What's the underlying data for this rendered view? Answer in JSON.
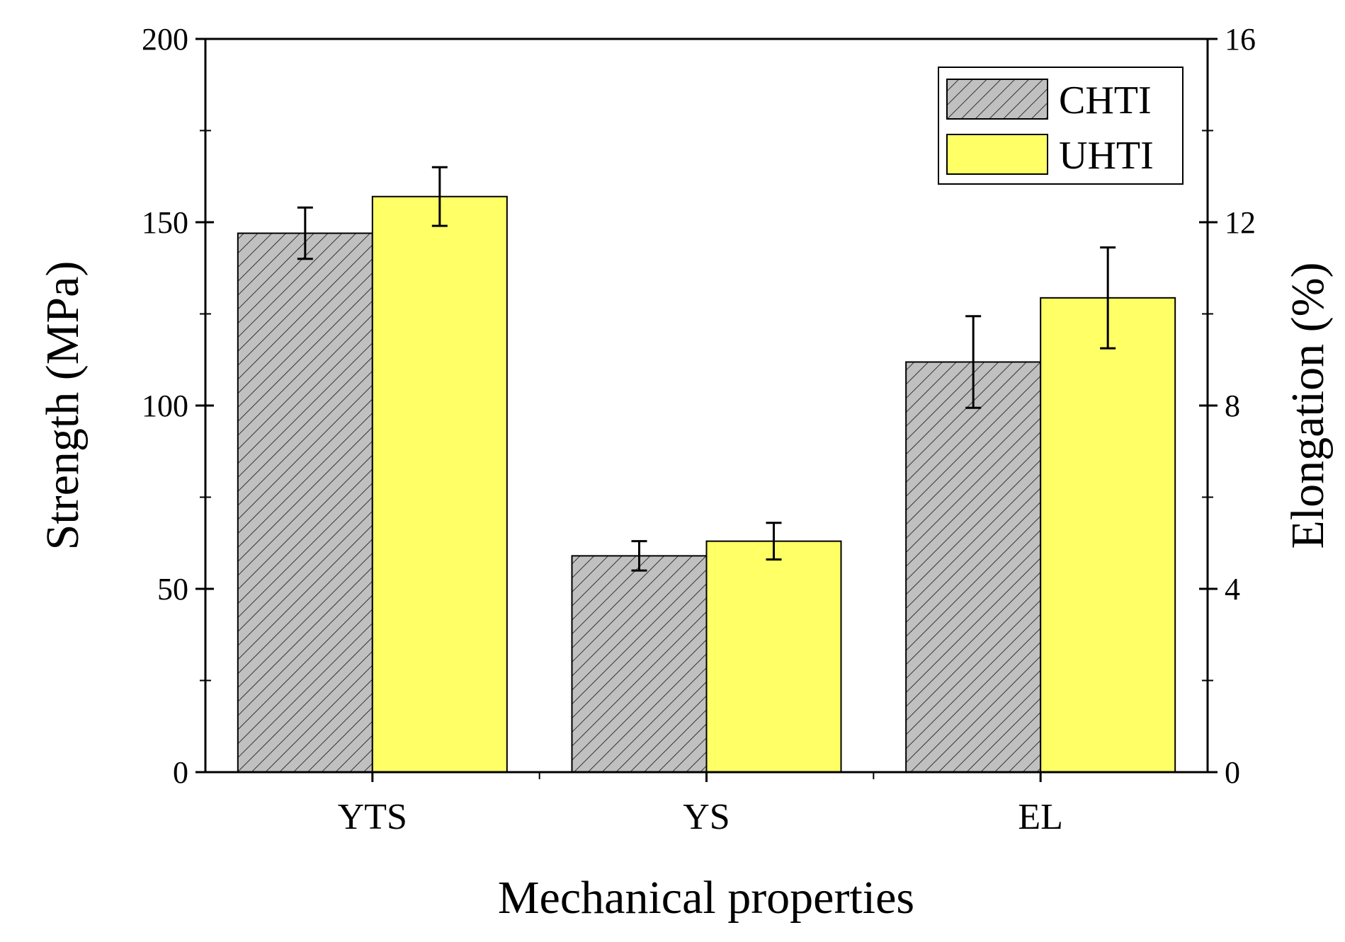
{
  "chart_data": {
    "type": "bar",
    "categories": [
      "YTS",
      "YS",
      "EL"
    ],
    "xlabel": "Mechanical properties",
    "ylabel": "Strength (MPa)",
    "y2label": "Elongation (%)",
    "ylim": [
      0,
      200
    ],
    "y2lim": [
      0,
      16
    ],
    "yticks": [
      "0",
      "50",
      "100",
      "150",
      "200"
    ],
    "y2ticks": [
      "0",
      "4",
      "8",
      "12",
      "16"
    ],
    "legend_position": "top-right",
    "grid": false,
    "series": [
      {
        "name": "CHTI",
        "color": "#c0c0c0",
        "pattern": "diagonal-hatch",
        "values": [
          147,
          59,
          8.95
        ],
        "errors": [
          7,
          4,
          1.0
        ],
        "axes": [
          "left",
          "left",
          "right"
        ]
      },
      {
        "name": "UHTI",
        "color": "#ffff66",
        "pattern": "solid",
        "values": [
          157,
          63,
          10.35
        ],
        "errors": [
          8,
          5,
          1.1
        ],
        "axes": [
          "left",
          "left",
          "right"
        ]
      }
    ]
  }
}
